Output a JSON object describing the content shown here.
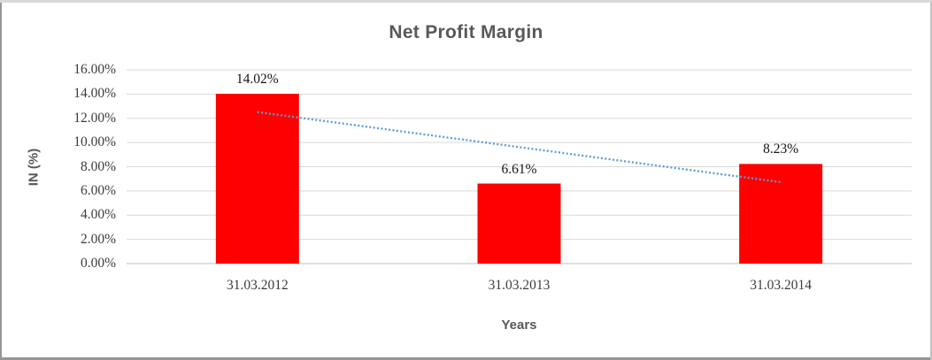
{
  "chart_data": {
    "type": "bar",
    "title": "Net Profit Margin",
    "xlabel": "Years",
    "ylabel": "IN (%)",
    "categories": [
      "31.03.2012",
      "31.03.2013",
      "31.03.2014"
    ],
    "values": [
      14.02,
      6.61,
      8.23
    ],
    "data_labels": [
      "14.02%",
      "6.61%",
      "8.23%"
    ],
    "ylim": [
      0,
      16
    ],
    "y_tick_step": 2,
    "y_tick_labels": [
      "0.00%",
      "2.00%",
      "4.00%",
      "6.00%",
      "8.00%",
      "10.00%",
      "12.00%",
      "14.00%",
      "16.00%"
    ],
    "grid": true,
    "legend": "none",
    "bar_color": "#ff0000",
    "gridline_color": "#d9d9d9",
    "baseline_color": "#bfbfbf",
    "title_color": "#595959",
    "tick_label_color": "#3b3b3b",
    "trendline": {
      "type": "linear",
      "style": "dotted",
      "color": "#5b9bd5"
    }
  }
}
